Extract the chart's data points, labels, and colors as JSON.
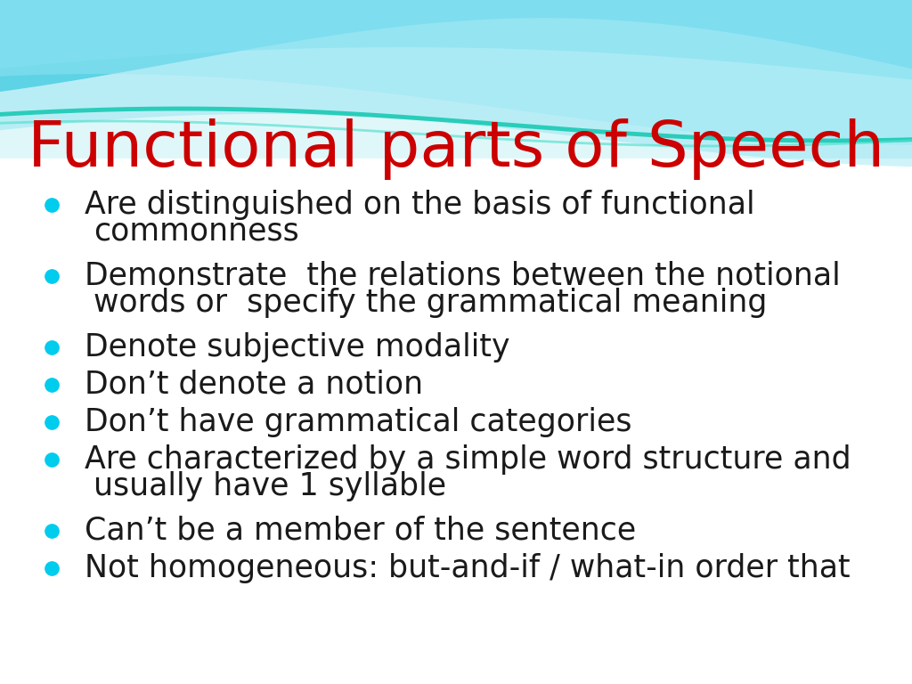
{
  "title": "Functional parts of Speech",
  "title_color": "#cc0000",
  "title_fontsize": 52,
  "title_font": "Georgia",
  "background_color": "#ffffff",
  "bullet_color": "#00ccee",
  "text_color": "#1a1a1a",
  "text_fontsize": 25,
  "text_font": "Georgia",
  "bullets": [
    [
      "Are distinguished on the basis of functional",
      "commonness"
    ],
    [
      "Demonstrate  the relations between the notional",
      "words or  specify the grammatical meaning"
    ],
    [
      "Denote subjective modality"
    ],
    [
      "“Don’t denote a notion"
    ],
    [
      "Don’t have grammatical categories"
    ],
    [
      "Are characterized by a simple word structure and",
      "usually have 1 syllable"
    ],
    [
      "Can’t be a member of the sentence"
    ],
    [
      "Not homogeneous: but-and-if / what-in order that"
    ]
  ],
  "bullet_items": [
    [
      "Are distinguished on the basis of functional",
      "commonness"
    ],
    [
      "Demonstrate  the relations between the notional",
      "words or  specify the grammatical meaning"
    ],
    [
      "Denote subjective modality"
    ],
    [
      "Don’t denote a notion"
    ],
    [
      "Don’t have grammatical categories"
    ],
    [
      "Are characterized by a simple word structure and",
      "usually have 1 syllable"
    ],
    [
      "Can’t be a member of the sentence"
    ],
    [
      "Not homogeneous: but-and-if / what-in order that"
    ]
  ]
}
